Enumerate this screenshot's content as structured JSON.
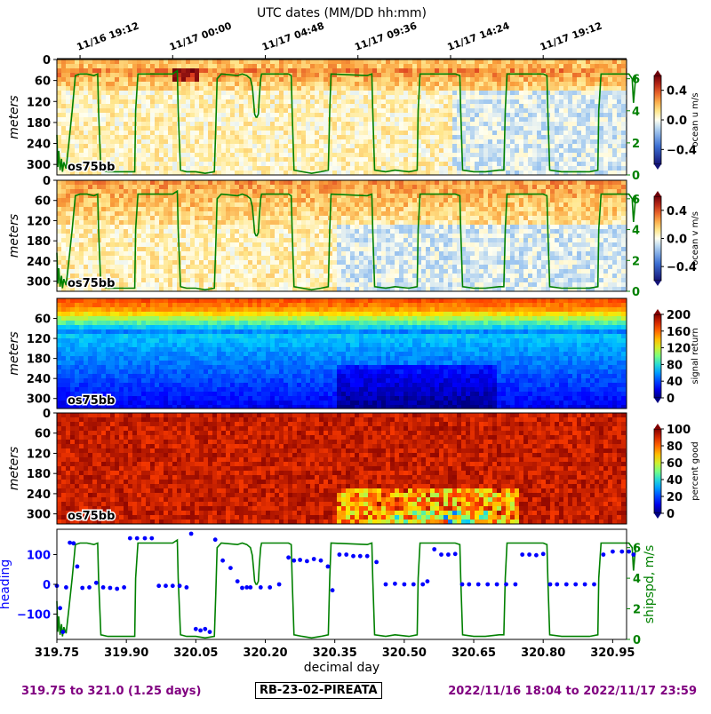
{
  "chart_data": [
    {
      "type": "heatmap",
      "panel": "u",
      "ylabel": "meters",
      "yticks": [
        0,
        60,
        120,
        180,
        240,
        300
      ],
      "ylim": [
        330,
        0
      ],
      "instrument_label": "os75bb",
      "colorbar": {
        "label": "ocean u m/s",
        "ticks": [
          "0.4",
          "0.0",
          "−0.4"
        ],
        "range": [
          -0.6,
          0.6
        ],
        "colormap": "blue-white-red"
      },
      "right_axis": {
        "ticks": [
          "0",
          "2",
          "4",
          "6"
        ],
        "color": "#008000"
      },
      "top_axis": {
        "title": "UTC dates (MM/DD hh:mm)",
        "ticks": [
          "11/16 19:12",
          "11/17 00:00",
          "11/17 04:48",
          "11/17 09:36",
          "11/17 14:24",
          "11/17 19:12"
        ]
      }
    },
    {
      "type": "heatmap",
      "panel": "v",
      "ylabel": "meters",
      "yticks": [
        0,
        60,
        120,
        180,
        240,
        300
      ],
      "ylim": [
        330,
        0
      ],
      "instrument_label": "os75bb",
      "colorbar": {
        "label": "ocean v m/s",
        "ticks": [
          "0.4",
          "0.0",
          "−0.4"
        ],
        "range": [
          -0.6,
          0.6
        ],
        "colormap": "blue-white-red"
      },
      "right_axis": {
        "ticks": [
          "0",
          "2",
          "4",
          "6"
        ],
        "color": "#008000"
      }
    },
    {
      "type": "heatmap",
      "panel": "amp",
      "ylabel": "meters",
      "yticks": [
        60,
        120,
        180,
        240,
        300
      ],
      "ylim": [
        330,
        0
      ],
      "instrument_label": "os75bb",
      "colorbar": {
        "label": "signal return",
        "ticks": [
          "200",
          "160",
          "120",
          "80",
          "40",
          "0"
        ],
        "range": [
          0,
          200
        ],
        "colormap": "jet"
      }
    },
    {
      "type": "heatmap",
      "panel": "pg",
      "ylabel": "meters",
      "yticks": [
        0,
        60,
        120,
        180,
        240,
        300
      ],
      "ylim": [
        330,
        0
      ],
      "instrument_label": "os75bb",
      "colorbar": {
        "label": "percent good",
        "ticks": [
          "100",
          "80",
          "60",
          "40",
          "20",
          "0"
        ],
        "range": [
          0,
          100
        ],
        "colormap": "jet"
      }
    },
    {
      "type": "scatter",
      "panel": "heading",
      "ylabel": "heading",
      "ylabel_color": "#0000ff",
      "yticks": [
        "100",
        "0",
        "−100"
      ],
      "ylim": [
        -185,
        185
      ],
      "right_label": "shipspd, m/s",
      "right_ticks": [
        "0",
        "2",
        "4",
        "6"
      ],
      "right_color": "#008000",
      "xlabel": "decimal day",
      "xticks": [
        "319.75",
        "319.90",
        "320.05",
        "320.20",
        "320.35",
        "320.50",
        "320.65",
        "320.80",
        "320.95"
      ],
      "xlim": [
        319.75,
        321.0
      ],
      "series": [
        {
          "x": [
            319.75,
            319.757,
            319.763,
            319.77,
            319.778,
            319.786,
            319.794,
            319.805,
            319.82,
            319.835,
            319.85,
            319.865,
            319.88,
            319.895,
            319.908,
            319.923,
            319.94,
            319.955,
            319.97,
            319.985,
            320.0,
            320.015,
            320.03,
            320.04,
            320.05,
            320.06,
            320.07,
            320.08,
            320.092,
            320.108,
            320.125,
            320.14,
            320.15,
            320.16,
            320.168,
            320.19,
            320.21,
            320.23,
            320.25,
            320.262,
            320.275,
            320.29,
            320.305,
            320.32,
            320.335,
            320.345,
            320.36,
            320.375,
            320.39,
            320.405,
            320.42,
            320.44,
            320.46,
            320.48,
            320.5,
            320.52,
            320.54,
            320.55,
            320.565,
            320.58,
            320.595,
            320.61,
            320.625,
            320.64,
            320.66,
            320.68,
            320.7,
            320.72,
            320.74,
            320.755,
            320.77,
            320.785,
            320.8,
            320.815,
            320.83,
            320.85,
            320.87,
            320.89,
            320.91,
            320.93,
            320.95,
            320.97,
            320.985,
            320.995
          ],
          "y": [
            -5,
            -80,
            -160,
            -10,
            140,
            138,
            60,
            -12,
            -10,
            5,
            -10,
            -12,
            -15,
            -10,
            155,
            155,
            155,
            155,
            -5,
            -5,
            -5,
            -5,
            -10,
            170,
            -150,
            -155,
            -150,
            -160,
            150,
            80,
            55,
            10,
            -12,
            -10,
            -10,
            -10,
            -10,
            0,
            90,
            80,
            82,
            78,
            85,
            80,
            60,
            -20,
            100,
            100,
            95,
            95,
            95,
            75,
            0,
            2,
            0,
            0,
            0,
            10,
            118,
            100,
            100,
            102,
            0,
            0,
            0,
            0,
            0,
            0,
            0,
            100,
            100,
            98,
            102,
            0,
            0,
            0,
            0,
            0,
            0,
            100,
            110,
            110,
            110,
            100
          ],
          "color": "#0000ff"
        },
        {
          "name": "shipspd",
          "axis": "right",
          "x": [
            319.75,
            319.752,
            319.754,
            319.757,
            319.76,
            319.762,
            319.765,
            319.77,
            319.776,
            319.783,
            319.79,
            319.8,
            319.815,
            319.83,
            319.838,
            319.84,
            319.845,
            319.86,
            319.88,
            319.9,
            319.918,
            319.92,
            319.925,
            320.0,
            320.01,
            320.012,
            320.017,
            320.03,
            320.05,
            320.07,
            320.09,
            320.093,
            320.096,
            320.105,
            320.14,
            320.15,
            320.16,
            320.168,
            320.172,
            320.175,
            320.177,
            320.18,
            320.182,
            320.185,
            320.187,
            320.19,
            320.192,
            320.25,
            320.256,
            320.258,
            320.262,
            320.28,
            320.3,
            320.32,
            320.336,
            320.339,
            320.342,
            320.42,
            320.43,
            320.432,
            320.436,
            320.46,
            320.48,
            320.51,
            320.528,
            320.53,
            320.534,
            320.61,
            320.62,
            320.622,
            320.626,
            320.65,
            320.675,
            320.705,
            320.715,
            320.718,
            320.722,
            320.8,
            320.808,
            320.81,
            320.814,
            320.84,
            320.87,
            320.9,
            320.918,
            320.92,
            320.925,
            320.985,
            320.992,
            320.995,
            321.0
          ],
          "y": [
            2.5,
            0.5,
            1.5,
            0.3,
            1.0,
            0.2,
            0.8,
            0.4,
            2.0,
            4.0,
            6.2,
            6.3,
            6.3,
            6.2,
            6.3,
            4.0,
            0.3,
            0.2,
            0.2,
            0.2,
            0.2,
            4.0,
            6.3,
            6.3,
            6.5,
            4.0,
            0.3,
            0.2,
            0.2,
            0.1,
            0.2,
            3.0,
            6.0,
            6.3,
            6.2,
            6.3,
            6.2,
            6.0,
            5.5,
            4.5,
            3.8,
            3.6,
            3.6,
            3.8,
            4.8,
            6.0,
            6.3,
            6.3,
            6.2,
            4.0,
            0.3,
            0.2,
            0.1,
            0.2,
            0.3,
            4.0,
            6.3,
            6.2,
            6.3,
            4.0,
            0.3,
            0.2,
            0.3,
            0.2,
            0.3,
            4.0,
            6.3,
            6.3,
            6.2,
            4.0,
            0.3,
            0.2,
            0.2,
            0.3,
            0.3,
            4.0,
            6.3,
            6.3,
            6.2,
            4.0,
            0.3,
            0.2,
            0.2,
            0.2,
            0.3,
            4.0,
            6.3,
            6.3,
            6.0,
            4.5,
            6.2
          ],
          "color": "#008000"
        }
      ]
    }
  ],
  "footer": {
    "left": "319.75 to 321.0 (1.25 days)",
    "center": "RB-23-02-PIREATA",
    "right": "2022/11/16 18:04 to 2022/11/17 23:59"
  }
}
